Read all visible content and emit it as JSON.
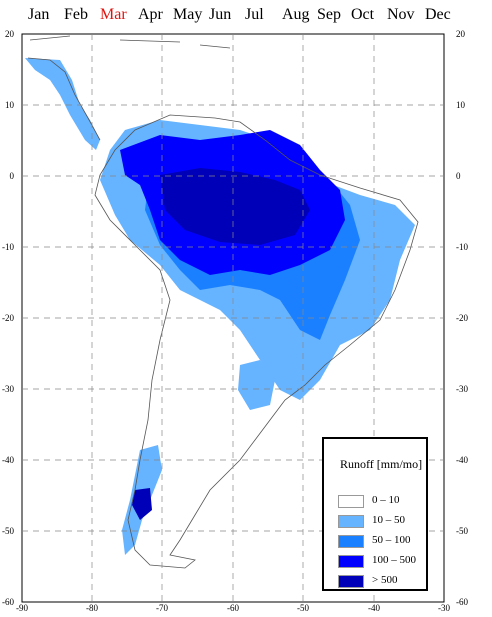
{
  "months": {
    "items": [
      "Jan",
      "Feb",
      "Mar",
      "Apr",
      "May",
      "Jun",
      "Jul",
      "Aug",
      "Sep",
      "Oct",
      "Nov",
      "Dec"
    ],
    "active": "Mar",
    "active_color": "#e0140f"
  },
  "map": {
    "lon_ticks": [
      "-90",
      "-80",
      "-70",
      "-60",
      "-50",
      "-40",
      "-30"
    ],
    "lat_ticks": [
      "20",
      "10",
      "0",
      "-10",
      "-20",
      "-30",
      "-40",
      "-50",
      "-60"
    ],
    "land_color": "#ffffff",
    "coast_color": "#555555",
    "grid_style": "dashed"
  },
  "legend": {
    "title": "Runoff [mm/mo]",
    "items": [
      {
        "label": "0  –  10",
        "color": "#ffffff"
      },
      {
        "label": "10  –  50",
        "color": "#66b3ff"
      },
      {
        "label": "50  –  100",
        "color": "#1a80ff"
      },
      {
        "label": "100  –  500",
        "color": "#0000ff"
      },
      {
        "label": ">  500",
        "color": "#0000b8"
      }
    ]
  }
}
